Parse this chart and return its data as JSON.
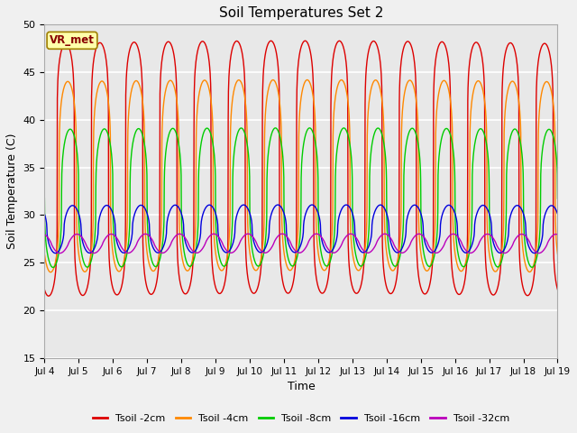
{
  "title": "Soil Temperatures Set 2",
  "xlabel": "Time",
  "ylabel": "Soil Temperature (C)",
  "ylim": [
    15,
    50
  ],
  "xlim": [
    0,
    15
  ],
  "fig_bg": "#f0f0f0",
  "plot_bg": "#e8e8e8",
  "grid_color": "#ffffff",
  "annotation_text": "VR_met",
  "annotation_bg": "#ffffaa",
  "annotation_border": "#a08000",
  "xtick_labels": [
    "Jul 4",
    "Jul 5",
    "Jul 6",
    "Jul 7",
    "Jul 8",
    "Jul 9",
    "Jul 10",
    "Jul 11",
    "Jul 12",
    "Jul 13",
    "Jul 14",
    "Jul 15",
    "Jul 16",
    "Jul 17",
    "Jul 18",
    "Jul 19"
  ],
  "ytick_values": [
    15,
    20,
    25,
    30,
    35,
    40,
    45,
    50
  ],
  "lines": [
    {
      "label": "Tsoil -2cm",
      "color": "#dd0000",
      "peak": 48.0,
      "trough": 21.5,
      "sharpness": 6.0,
      "phase": 0.62,
      "base_trend": 0.3
    },
    {
      "label": "Tsoil -4cm",
      "color": "#ff8800",
      "peak": 44.0,
      "trough": 24.0,
      "sharpness": 4.0,
      "phase": 0.68,
      "base_trend": 0.2
    },
    {
      "label": "Tsoil -8cm",
      "color": "#00cc00",
      "peak": 39.0,
      "trough": 24.5,
      "sharpness": 3.0,
      "phase": 0.75,
      "base_trend": 0.15
    },
    {
      "label": "Tsoil -16cm",
      "color": "#0000dd",
      "peak": 31.0,
      "trough": 26.0,
      "sharpness": 2.0,
      "phase": 0.82,
      "base_trend": 0.08
    },
    {
      "label": "Tsoil -32cm",
      "color": "#bb00bb",
      "peak": 28.0,
      "trough": 26.0,
      "sharpness": 1.2,
      "phase": 0.95,
      "base_trend": 0.04
    }
  ]
}
